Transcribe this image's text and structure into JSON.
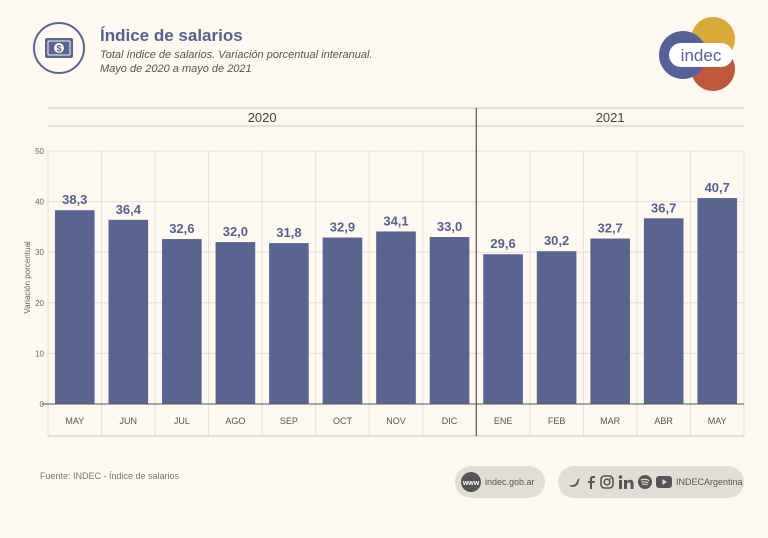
{
  "header": {
    "title": "Índice de salarios",
    "subtitle_line1": "Total índice de salarios. Variación porcentual interanual.",
    "subtitle_line2": "Mayo de 2020 a mayo de 2021",
    "icon": "money-bill-icon"
  },
  "logo": {
    "text": "indec",
    "colors": [
      "#d9a93a",
      "#c0573d",
      "#56619a"
    ]
  },
  "chart_data": {
    "type": "bar",
    "title": "Índice de salarios",
    "ylabel": "Variación porcentual",
    "ylim": [
      0,
      50
    ],
    "yticks": [
      0,
      10,
      20,
      30,
      40,
      50
    ],
    "grid": true,
    "year_groups": [
      {
        "label": "2020",
        "count": 8
      },
      {
        "label": "2021",
        "count": 5
      }
    ],
    "categories": [
      "MAY",
      "JUN",
      "JUL",
      "AGO",
      "SEP",
      "OCT",
      "NOV",
      "DIC",
      "ENE",
      "FEB",
      "MAR",
      "ABR",
      "MAY"
    ],
    "values": [
      38.3,
      36.4,
      32.6,
      32.0,
      31.8,
      32.9,
      34.1,
      33.0,
      29.6,
      30.2,
      32.7,
      36.7,
      40.7
    ],
    "value_labels": [
      "38,3",
      "36,4",
      "32,6",
      "32,0",
      "31,8",
      "32,9",
      "34,1",
      "33,0",
      "29,6",
      "30,2",
      "32,7",
      "36,7",
      "40,7"
    ],
    "bar_color": "#5a6491"
  },
  "footer": {
    "source": "Fuente: INDEC - Índice de salarios",
    "web_label": "indec.gob.ar",
    "social_label": "INDECArgentina",
    "social_icons": [
      "twitter-icon",
      "facebook-icon",
      "instagram-icon",
      "linkedin-icon",
      "spotify-icon",
      "youtube-icon"
    ]
  }
}
